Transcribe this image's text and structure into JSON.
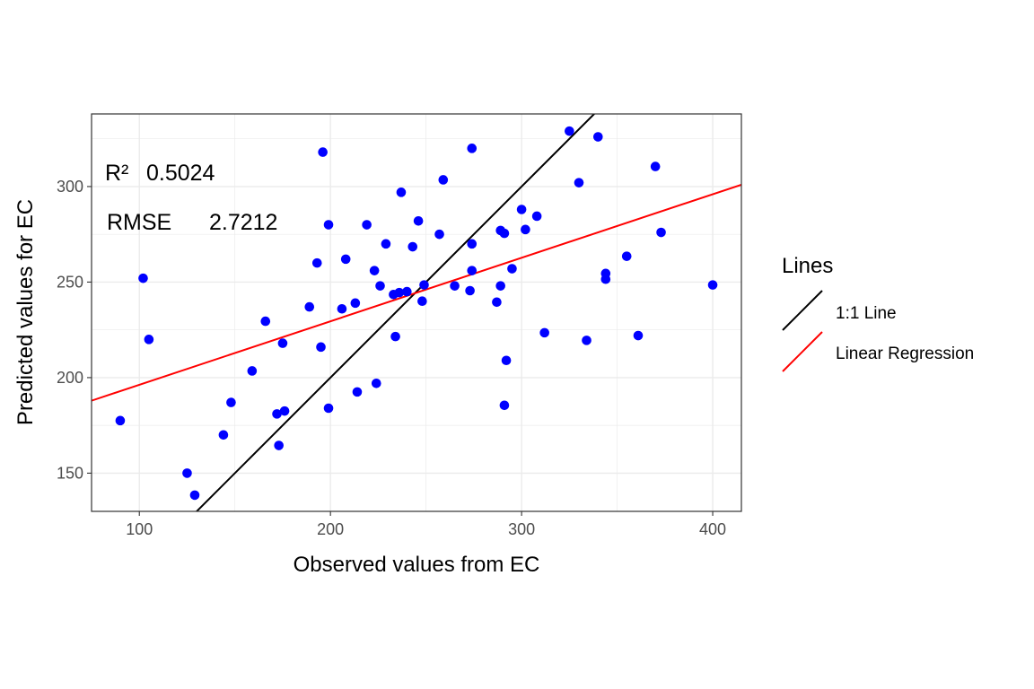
{
  "chart_data": {
    "type": "scatter",
    "title": "",
    "xlabel": "Observed values from EC",
    "ylabel": "Predicted values for EC",
    "xlim": [
      75,
      415
    ],
    "ylim": [
      130,
      338
    ],
    "x_ticks": [
      100,
      200,
      300,
      400
    ],
    "y_ticks": [
      150,
      200,
      250,
      300
    ],
    "grid": true,
    "point_color": "#0000ff",
    "points": [
      {
        "x": 90,
        "y": 177.5
      },
      {
        "x": 102,
        "y": 252
      },
      {
        "x": 105,
        "y": 220
      },
      {
        "x": 125,
        "y": 150
      },
      {
        "x": 129,
        "y": 138.5
      },
      {
        "x": 144,
        "y": 170
      },
      {
        "x": 148,
        "y": 187
      },
      {
        "x": 159,
        "y": 203.5
      },
      {
        "x": 166,
        "y": 229.5
      },
      {
        "x": 172,
        "y": 181
      },
      {
        "x": 173,
        "y": 164.5
      },
      {
        "x": 175,
        "y": 218
      },
      {
        "x": 176,
        "y": 182.5
      },
      {
        "x": 189,
        "y": 237
      },
      {
        "x": 193,
        "y": 260
      },
      {
        "x": 195,
        "y": 216
      },
      {
        "x": 196,
        "y": 318
      },
      {
        "x": 199,
        "y": 184
      },
      {
        "x": 199,
        "y": 280
      },
      {
        "x": 206,
        "y": 236
      },
      {
        "x": 208,
        "y": 262
      },
      {
        "x": 213,
        "y": 239
      },
      {
        "x": 214,
        "y": 192.5
      },
      {
        "x": 219,
        "y": 280
      },
      {
        "x": 223,
        "y": 256
      },
      {
        "x": 224,
        "y": 197
      },
      {
        "x": 226,
        "y": 248
      },
      {
        "x": 229,
        "y": 270
      },
      {
        "x": 233,
        "y": 243.5
      },
      {
        "x": 234,
        "y": 221.5
      },
      {
        "x": 236,
        "y": 244.5
      },
      {
        "x": 237,
        "y": 297
      },
      {
        "x": 240,
        "y": 245
      },
      {
        "x": 243,
        "y": 268.5
      },
      {
        "x": 246,
        "y": 282
      },
      {
        "x": 248,
        "y": 240
      },
      {
        "x": 249,
        "y": 248.5
      },
      {
        "x": 257,
        "y": 275
      },
      {
        "x": 259,
        "y": 303.5
      },
      {
        "x": 265,
        "y": 248
      },
      {
        "x": 273,
        "y": 245.5
      },
      {
        "x": 274,
        "y": 270
      },
      {
        "x": 274,
        "y": 256
      },
      {
        "x": 274,
        "y": 320
      },
      {
        "x": 287,
        "y": 239.5
      },
      {
        "x": 289,
        "y": 248
      },
      {
        "x": 289,
        "y": 277
      },
      {
        "x": 291,
        "y": 275.5
      },
      {
        "x": 291,
        "y": 185.5
      },
      {
        "x": 292,
        "y": 209
      },
      {
        "x": 295,
        "y": 257
      },
      {
        "x": 300,
        "y": 288
      },
      {
        "x": 302,
        "y": 277.5
      },
      {
        "x": 308,
        "y": 284.5
      },
      {
        "x": 312,
        "y": 223.5
      },
      {
        "x": 325,
        "y": 329
      },
      {
        "x": 330,
        "y": 302
      },
      {
        "x": 334,
        "y": 219.5
      },
      {
        "x": 340,
        "y": 326
      },
      {
        "x": 344,
        "y": 254.5
      },
      {
        "x": 344,
        "y": 251.5
      },
      {
        "x": 355,
        "y": 263.5
      },
      {
        "x": 361,
        "y": 222
      },
      {
        "x": 370,
        "y": 310.5
      },
      {
        "x": 373,
        "y": 276
      },
      {
        "x": 400,
        "y": 248.5
      }
    ],
    "lines": [
      {
        "name": "1:1 Line",
        "color": "#000000",
        "slope": 1,
        "intercept": 0
      },
      {
        "name": "Linear Regression",
        "color": "#ff0000",
        "slope": 0.3324,
        "intercept": 163.0
      }
    ],
    "annotations": {
      "r2_label": "R²",
      "r2_value": "0.5024",
      "rmse_label": "RMSE",
      "rmse_value": "2.7212"
    },
    "legend": {
      "title": "Lines",
      "position": "right",
      "items": [
        {
          "label": "1:1 Line",
          "color": "#000000"
        },
        {
          "label": "Linear Regression",
          "color": "#ff0000"
        }
      ]
    }
  }
}
